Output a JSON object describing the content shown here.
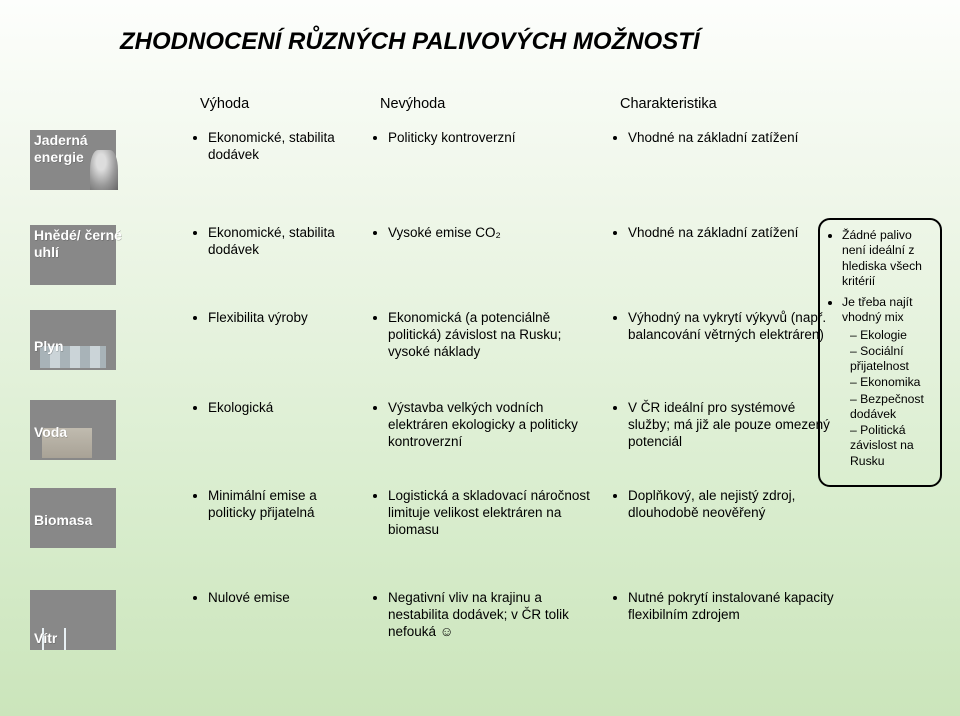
{
  "title": "ZHODNOCENÍ RŮZNÝCH PALIVOVÝCH MOŽNOSTÍ",
  "headers": {
    "h1": "Výhoda",
    "h2": "Nevýhoda",
    "h3": "Charakteristika"
  },
  "rows": [
    {
      "label": "Jaderná\nenergie",
      "img": "nuclear",
      "adv": "Ekonomické, stabilita dodávek",
      "dis": "Politicky kontroverzní",
      "char": "Vhodné na základní zatížení"
    },
    {
      "label": "Hnědé/ černé\nuhlí",
      "img": "coal",
      "adv": "Ekonomické, stabilita dodávek",
      "dis": "Vysoké emise CO₂",
      "char": "Vhodné na základní zatížení"
    },
    {
      "label": "Plyn",
      "img": "gas",
      "adv": "Flexibilita výroby",
      "dis": "Ekonomická (a potenciálně politická) závislost na Rusku; vysoké náklady",
      "char": "Výhodný na vykrytí výkyvů (např. balancování větrných elektráren)"
    },
    {
      "label": "Voda",
      "img": "water",
      "adv": "Ekologická",
      "dis": "Výstavba velkých vodních elektráren ekologicky a politicky kontroverzní",
      "char": "V ČR ideální pro systémové služby; má již ale pouze omezený potenciál"
    },
    {
      "label": "Biomasa",
      "img": "biomass",
      "adv": "Minimální emise a politicky přijatelná",
      "dis": "Logistická a skladovací náročnost limituje velikost elektráren na biomasu",
      "char": "Doplňkový, ale nejistý zdroj, dlouhodobě neověřený"
    },
    {
      "label": "Vítr",
      "img": "wind",
      "adv": "Nulové emise",
      "dis": "Negativní vliv na krajinu a nestabilita dodávek; v ČR tolik nefouká ☺",
      "char": "Nutné pokrytí instalované kapacity flexibilním zdrojem"
    }
  ],
  "callout": {
    "l1": "Žádné palivo není ideální z hlediska všech kritérií",
    "l2": "Je třeba najít vhodný mix",
    "mix": [
      "Ekologie",
      "Sociální přijatelnost",
      "Ekonomika",
      "Bezpečnost dodávek",
      "Politická závislost na Rusku"
    ]
  }
}
